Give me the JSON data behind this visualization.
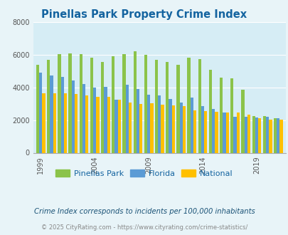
{
  "title": "Pinellas Park Property Crime Index",
  "title_color": "#1464a0",
  "years": [
    1999,
    2000,
    2001,
    2002,
    2003,
    2004,
    2005,
    2006,
    2007,
    2008,
    2009,
    2010,
    2011,
    2012,
    2013,
    2014,
    2015,
    2016,
    2017,
    2018,
    2019,
    2020,
    2021
  ],
  "pinellas_park": [
    5400,
    5700,
    6050,
    6100,
    6050,
    5850,
    5550,
    5900,
    6050,
    6220,
    6000,
    5700,
    5550,
    5400,
    5850,
    5750,
    5100,
    4600,
    4550,
    3850,
    2250,
    2250,
    2100
  ],
  "florida": [
    4900,
    4750,
    4650,
    4450,
    4200,
    4000,
    4050,
    3250,
    4150,
    3900,
    3550,
    3500,
    3300,
    3100,
    3400,
    2850,
    2700,
    2450,
    2200,
    2200,
    2150,
    2200,
    2100
  ],
  "national": [
    3650,
    3650,
    3650,
    3600,
    3500,
    3450,
    3450,
    3250,
    3100,
    3000,
    3050,
    2950,
    2900,
    2850,
    2600,
    2550,
    2500,
    2450,
    2450,
    2350,
    2100,
    2050,
    2050
  ],
  "pinellas_color": "#8bc34a",
  "florida_color": "#5b9bd5",
  "national_color": "#ffc000",
  "bg_color": "#e8f4f8",
  "plot_bg": "#d6edf5",
  "ylim": [
    0,
    8000
  ],
  "yticks": [
    0,
    2000,
    4000,
    6000,
    8000
  ],
  "xtick_years": [
    1999,
    2004,
    2009,
    2014,
    2019
  ],
  "subtitle": "Crime Index corresponds to incidents per 100,000 inhabitants",
  "footer": "© 2025 CityRating.com - https://www.cityrating.com/crime-statistics/",
  "legend_labels": [
    "Pinellas Park",
    "Florida",
    "National"
  ],
  "bar_width": 0.28
}
